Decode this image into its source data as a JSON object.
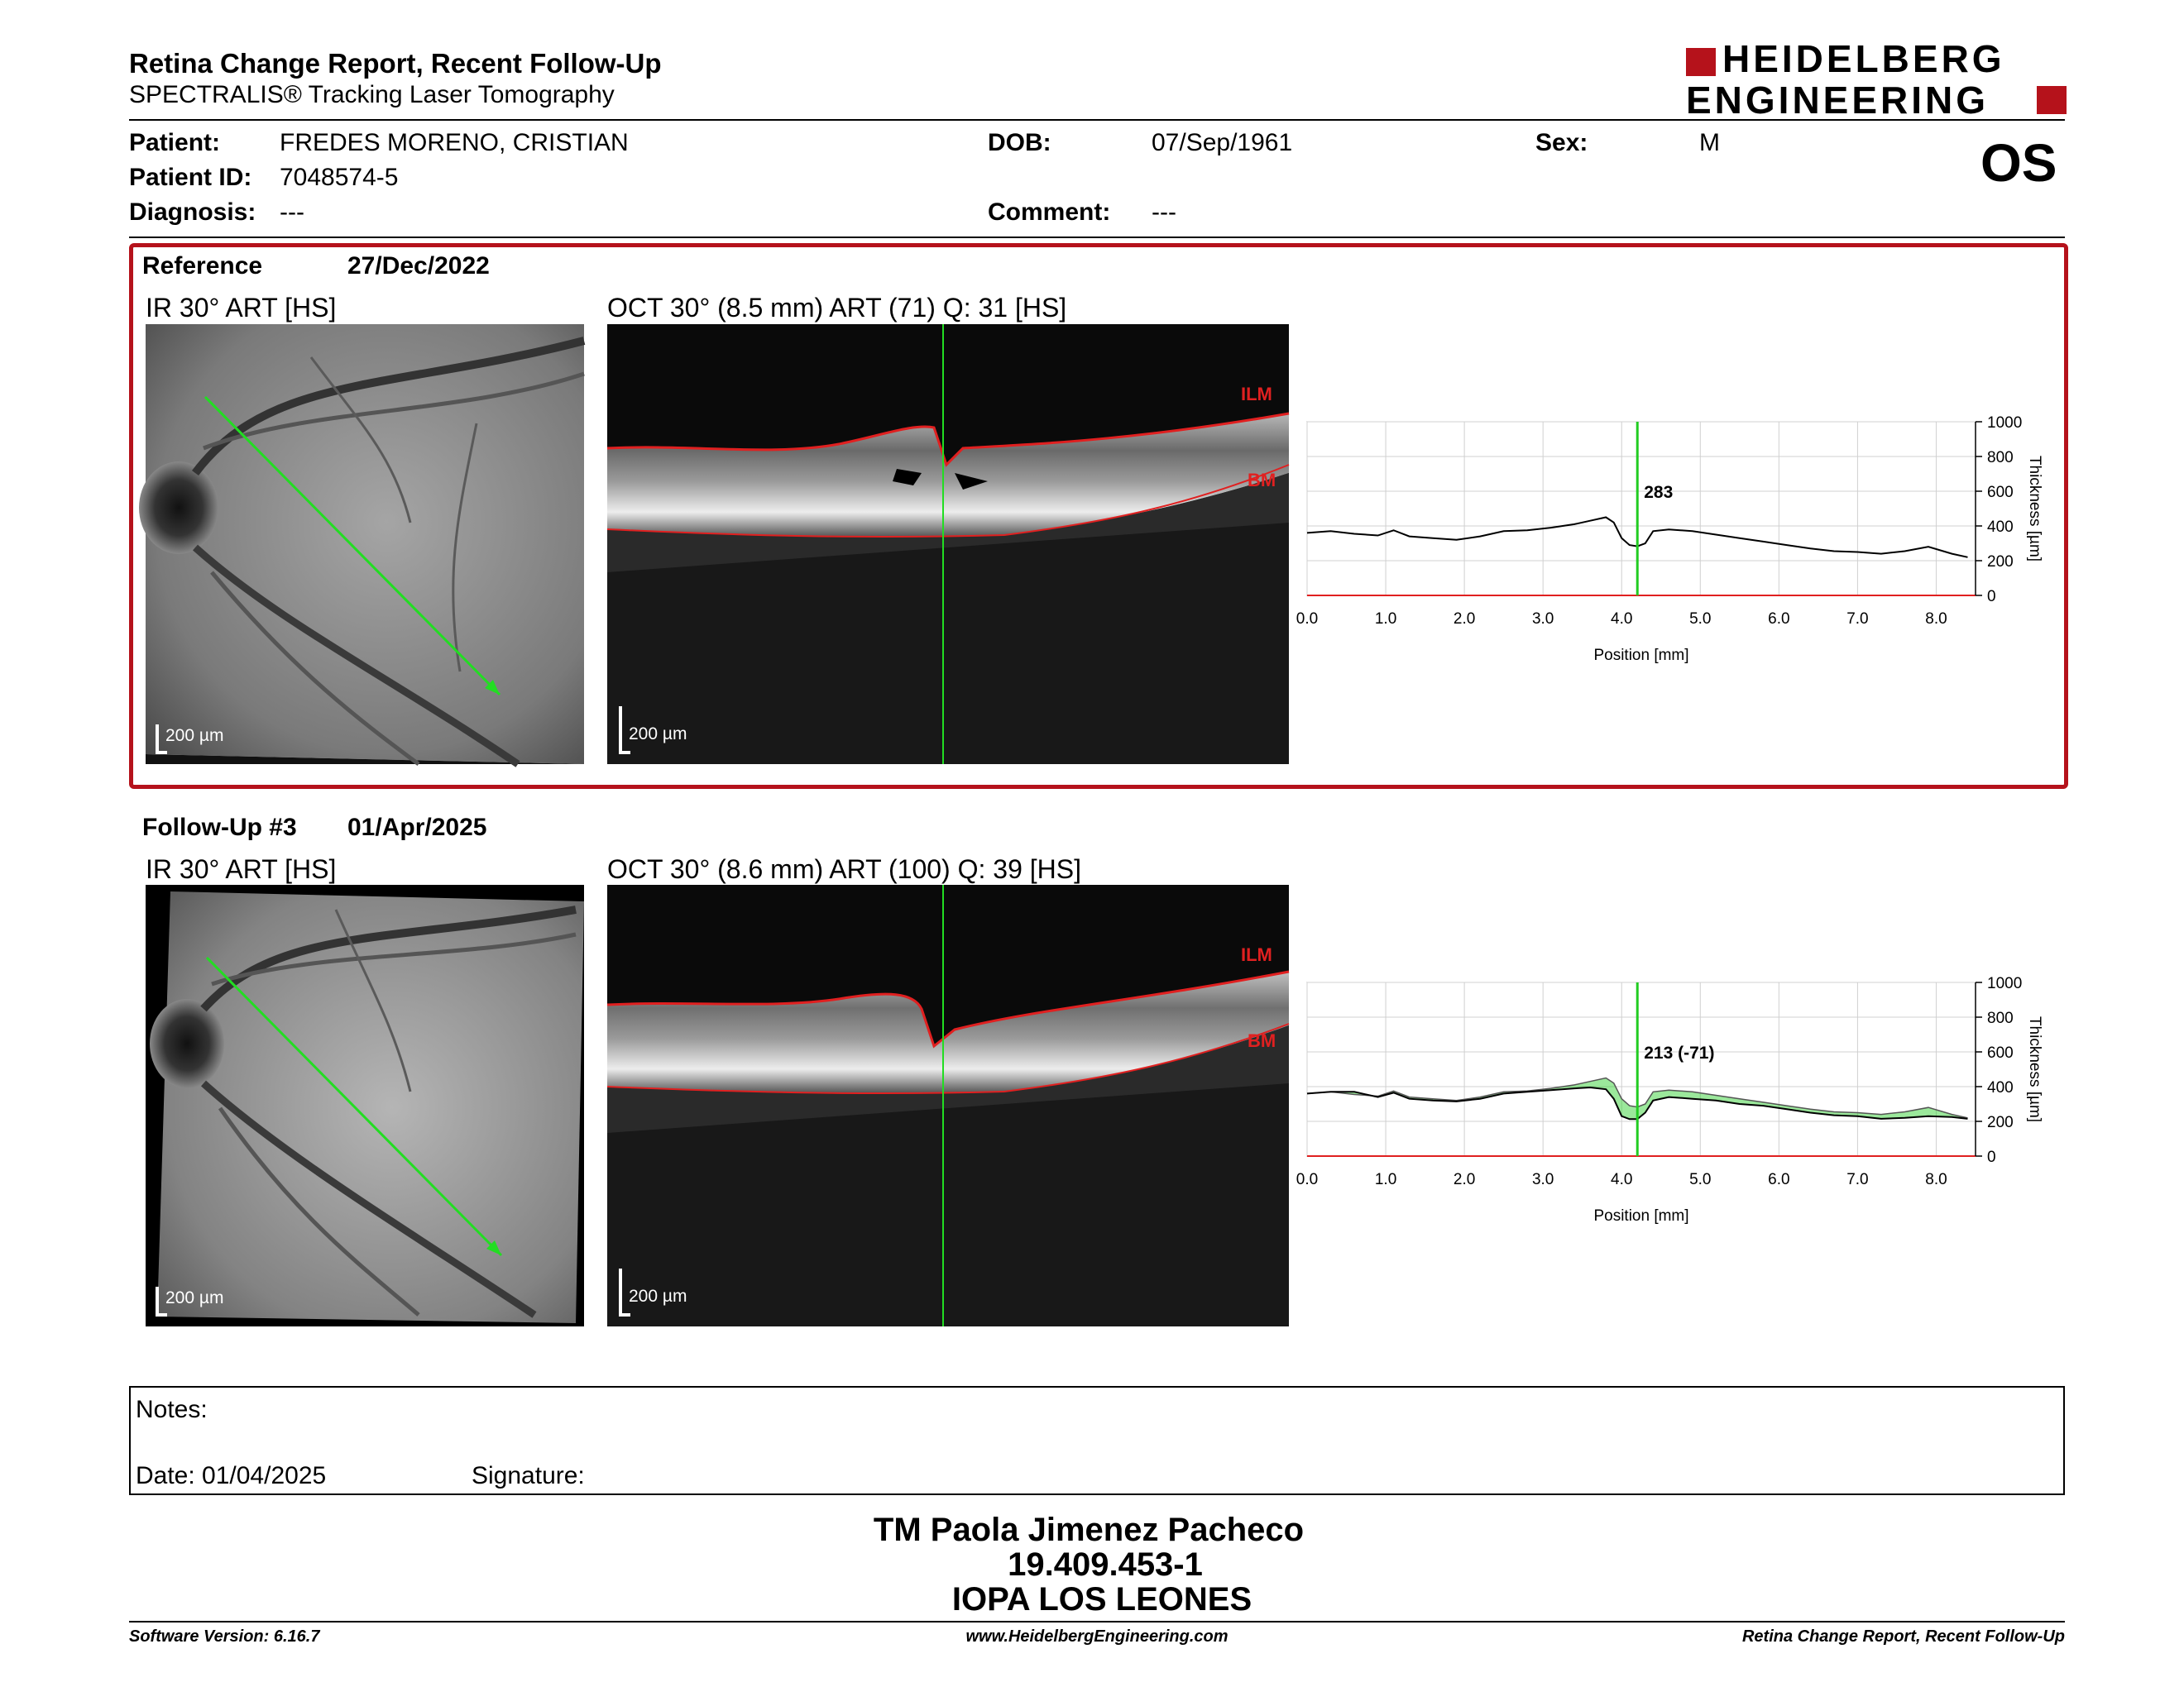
{
  "header": {
    "title": "Retina Change Report, Recent Follow-Up",
    "subtitle": "SPECTRALIS® Tracking Laser Tomography",
    "logo_line1": "HEIDELBERG",
    "logo_line2": "ENGINEERING",
    "eye": "OS"
  },
  "patient": {
    "patient_label": "Patient:",
    "patient_value": "FREDES MORENO, CRISTIAN",
    "id_label": "Patient ID:",
    "id_value": "7048574-5",
    "diagnosis_label": "Diagnosis:",
    "diagnosis_value": "---",
    "dob_label": "DOB:",
    "dob_value": "07/Sep/1961",
    "comment_label": "Comment:",
    "comment_value": "---",
    "sex_label": "Sex:",
    "sex_value": "M"
  },
  "reference": {
    "label": "Reference",
    "date": "27/Dec/2022",
    "ir_title": "IR 30° ART [HS]",
    "oct_title": "OCT 30° (8.5 mm) ART (71) Q: 31 [HS]",
    "ir_scale": "200 µm",
    "oct_scale": "200 µm",
    "ilm": "ILM",
    "bm": "BM"
  },
  "followup": {
    "label": "Follow-Up #3",
    "date": "01/Apr/2025",
    "ir_title": "IR 30° ART [HS]",
    "oct_title": "OCT 30° (8.6 mm) ART (100) Q: 39 [HS]",
    "ir_scale": "200 µm",
    "oct_scale": "200 µm",
    "ilm": "ILM",
    "bm": "BM"
  },
  "notes": {
    "notes_label": "Notes:",
    "date_label": "Date: 01/04/2025",
    "signature_label": "Signature:"
  },
  "signature_block": {
    "line1": "TM Paola Jimenez Pacheco",
    "line2": "19.409.453-1",
    "line3": "IOPA LOS LEONES"
  },
  "footer": {
    "left": "Software Version: 6.16.7",
    "center": "www.HeidelbergEngineering.com",
    "right": "Retina Change Report, Recent Follow-Up"
  },
  "colors": {
    "brand_red": "#b5121b",
    "green": "#22cc22",
    "layer_red": "#e02020"
  },
  "chart_data": [
    {
      "type": "line",
      "xlabel": "Position [mm]",
      "ylabel": "Thickness [µm]",
      "xlim": [
        0,
        8.5
      ],
      "ylim": [
        0,
        1000
      ],
      "x_ticks": [
        "0.0",
        "1.0",
        "2.0",
        "3.0",
        "4.0",
        "5.0",
        "6.0",
        "7.0",
        "8.0"
      ],
      "y_ticks": [
        "0",
        "200",
        "400",
        "600",
        "800",
        "1000"
      ],
      "grid": true,
      "cursor_x": 4.2,
      "cursor_label": "283",
      "series": [
        {
          "x": [
            0.0,
            0.3,
            0.6,
            0.9,
            1.1,
            1.3,
            1.6,
            1.9,
            2.2,
            2.5,
            2.8,
            3.1,
            3.4,
            3.6,
            3.8,
            3.9,
            4.0,
            4.1,
            4.2,
            4.3,
            4.4,
            4.6,
            4.9,
            5.2,
            5.5,
            5.8,
            6.1,
            6.4,
            6.7,
            7.0,
            7.3,
            7.6,
            7.9,
            8.2,
            8.4
          ],
          "values": [
            360,
            370,
            355,
            345,
            375,
            340,
            330,
            320,
            340,
            370,
            375,
            390,
            410,
            430,
            450,
            420,
            330,
            290,
            283,
            300,
            370,
            380,
            370,
            350,
            330,
            310,
            290,
            270,
            255,
            250,
            240,
            255,
            280,
            240,
            220
          ]
        }
      ]
    },
    {
      "type": "line",
      "xlabel": "Position [mm]",
      "ylabel": "Thickness [µm]",
      "xlim": [
        0,
        8.5
      ],
      "ylim": [
        0,
        1000
      ],
      "x_ticks": [
        "0.0",
        "1.0",
        "2.0",
        "3.0",
        "4.0",
        "5.0",
        "6.0",
        "7.0",
        "8.0"
      ],
      "y_ticks": [
        "0",
        "200",
        "400",
        "600",
        "800",
        "1000"
      ],
      "grid": true,
      "cursor_x": 4.2,
      "cursor_label": "213 (-71)",
      "series": [
        {
          "x": [
            0.0,
            0.3,
            0.6,
            0.9,
            1.1,
            1.3,
            1.6,
            1.9,
            2.2,
            2.5,
            2.8,
            3.1,
            3.4,
            3.6,
            3.8,
            3.9,
            4.0,
            4.1,
            4.2,
            4.3,
            4.4,
            4.6,
            4.9,
            5.2,
            5.5,
            5.8,
            6.1,
            6.4,
            6.7,
            7.0,
            7.3,
            7.6,
            7.9,
            8.2,
            8.4
          ],
          "values": [
            360,
            370,
            370,
            340,
            365,
            330,
            320,
            315,
            330,
            360,
            370,
            380,
            390,
            395,
            385,
            330,
            230,
            213,
            213,
            250,
            320,
            340,
            330,
            320,
            300,
            290,
            270,
            250,
            235,
            230,
            215,
            220,
            230,
            225,
            215
          ]
        }
      ]
    }
  ]
}
